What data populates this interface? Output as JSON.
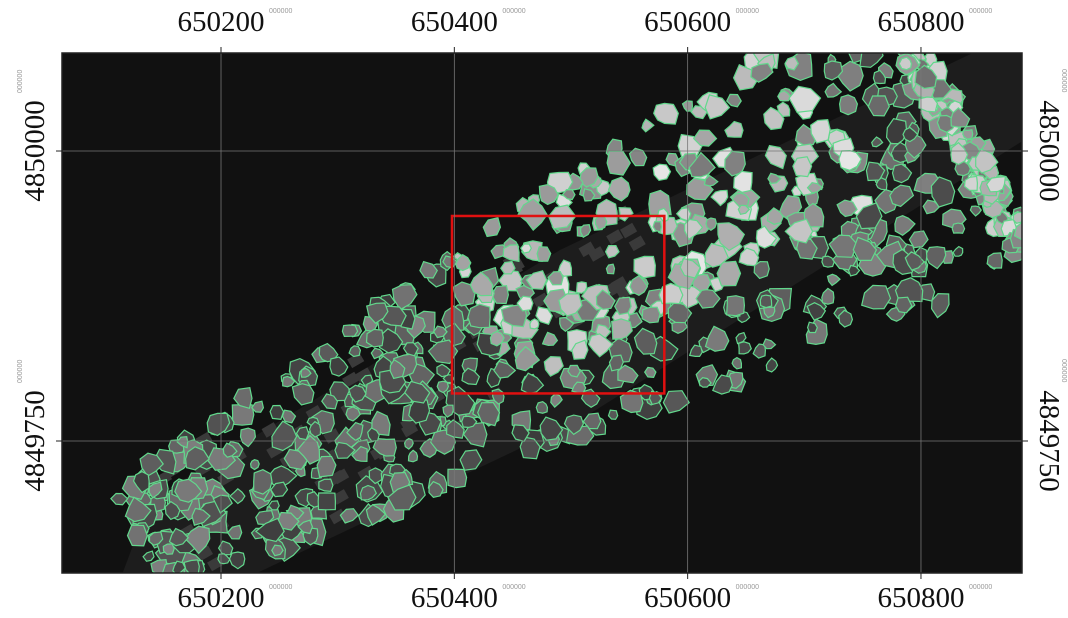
{
  "map": {
    "xlim": [
      650063.7,
      650886.6
    ],
    "ylim": [
      4849636.2,
      4850084.5
    ],
    "xticks": [
      650200,
      650400,
      650600,
      650800
    ],
    "yticks": [
      4849750,
      4850000
    ],
    "tick_suffix": "000000",
    "highlight_box": {
      "x": [
        650398,
        650580
      ],
      "y": [
        4849791,
        4849944
      ],
      "color": "#e01010"
    },
    "outline_color": "#62d88c"
  }
}
